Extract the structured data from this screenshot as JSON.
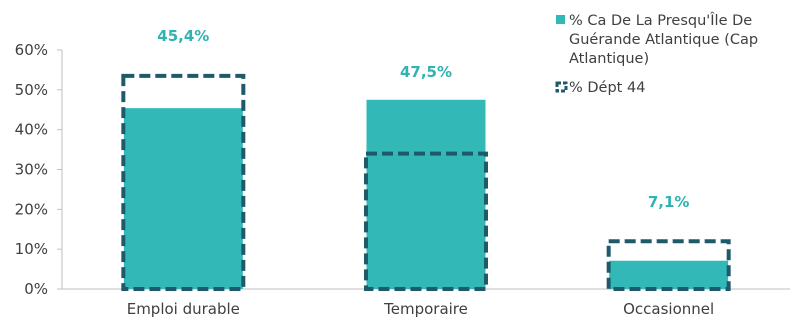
{
  "chart_data": {
    "type": "bar",
    "categories": [
      "Emploi durable",
      "Temporaire",
      "Occasionnel"
    ],
    "series": [
      {
        "name": "% Ca De La Presqu'Île De Guérande Atlantique (Cap Atlantique)",
        "values": [
          45.4,
          47.5,
          7.1
        ],
        "color": "#33b8b8",
        "style": "filled"
      },
      {
        "name": "% Dépt 44",
        "values": [
          53.5,
          34,
          12
        ],
        "color": "#1e5a6a",
        "style": "dashed-outline"
      }
    ],
    "data_labels": [
      "45,4%",
      "47,5%",
      "7,1%"
    ],
    "data_label_color": "#2fb3b3",
    "y_ticks": [
      {
        "value": 0,
        "label": "0%"
      },
      {
        "value": 10,
        "label": "10%"
      },
      {
        "value": 20,
        "label": "20%"
      },
      {
        "value": 30,
        "label": "30%"
      },
      {
        "value": 40,
        "label": "40%"
      },
      {
        "value": 50,
        "label": "50%"
      },
      {
        "value": 60,
        "label": "60%"
      }
    ],
    "ylim": [
      0,
      60
    ],
    "grid": false,
    "legend_position": "top-right",
    "legend_lines": [
      [
        "% Ca De La Presqu'Île De",
        "Guérande Atlantique (Cap",
        "Atlantique)"
      ],
      [
        "% Dépt 44"
      ]
    ],
    "title": "",
    "xlabel": "",
    "ylabel": ""
  }
}
